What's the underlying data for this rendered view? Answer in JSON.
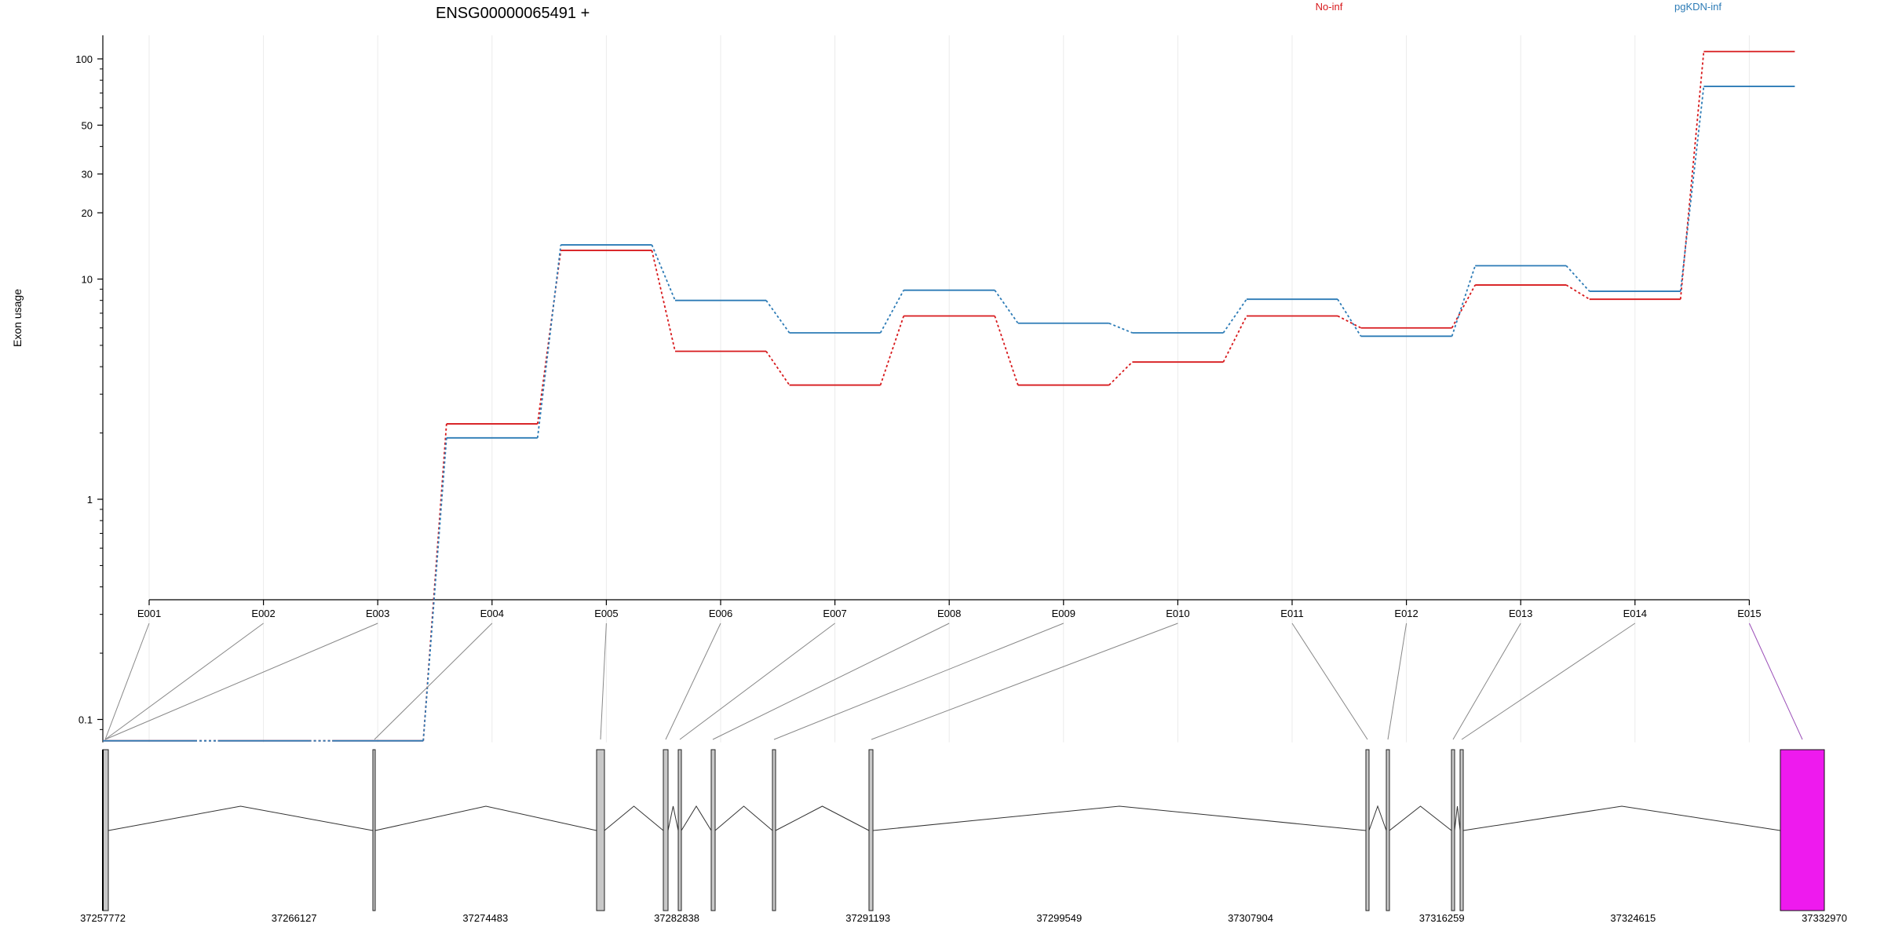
{
  "chart_data": {
    "type": "line",
    "title": "ENSG00000065491 +",
    "ylabel": "Exon usage",
    "xlabel": "",
    "yscale": "log",
    "ylim": [
      0.08,
      130
    ],
    "yticks": [
      {
        "value": 0.1,
        "label": "0.1"
      },
      {
        "value": 1,
        "label": "1"
      },
      {
        "value": 10,
        "label": "10"
      },
      {
        "value": 20,
        "label": "20"
      },
      {
        "value": 30,
        "label": "30"
      },
      {
        "value": 50,
        "label": "50"
      },
      {
        "value": 100,
        "label": "100"
      }
    ],
    "grid": "vertical",
    "legend_position": "top",
    "categories": [
      "E001",
      "E002",
      "E003",
      "E004",
      "E005",
      "E006",
      "E007",
      "E008",
      "E009",
      "E010",
      "E011",
      "E012",
      "E013",
      "E014",
      "E015"
    ],
    "series": [
      {
        "name": "No-inf",
        "color": "#d7191c",
        "values": [
          0.08,
          0.08,
          0.08,
          2.2,
          13.5,
          4.7,
          3.3,
          6.8,
          3.3,
          4.2,
          6.8,
          6.0,
          9.4,
          8.1,
          108
        ]
      },
      {
        "name": "pgKDN-inf",
        "color": "#2c7bb6",
        "values": [
          0.08,
          0.08,
          0.08,
          1.9,
          14.3,
          8.0,
          5.7,
          8.9,
          6.3,
          5.7,
          8.1,
          5.5,
          11.5,
          8.8,
          75
        ]
      }
    ],
    "gene_model": {
      "coordinate_ticks": [
        "37257772",
        "37266127",
        "37274483",
        "37282838",
        "37291193",
        "37299549",
        "37307904",
        "37316259",
        "37324615",
        "37332970"
      ],
      "highlight_exon": "E015",
      "highlight_color": "#ee1aee"
    }
  }
}
